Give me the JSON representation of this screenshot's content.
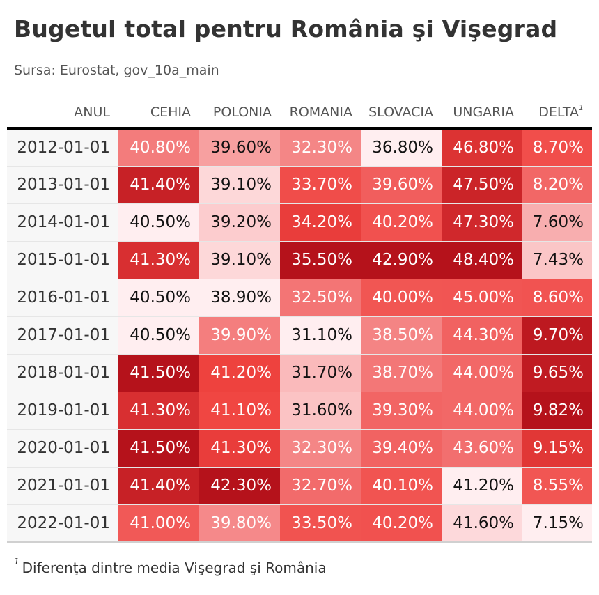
{
  "chart_data": {
    "type": "table",
    "title": "Bugetul total pentru România şi Vişegrad",
    "subtitle": "Sursa: Eurostat, gov_10a_main",
    "footnote": {
      "mark": "1",
      "text": "Diferenţa dintre media Vişegrad şi România"
    },
    "columns": [
      "ANUL",
      "CEHIA",
      "POLONIA",
      "ROMANIA",
      "SLOVACIA",
      "UNGARIA",
      "DELTA"
    ],
    "delta_footnote_mark": "1",
    "colors": {
      "lightest": "#ffeef0",
      "mid": "#f26f6f",
      "bright": "#f0433f",
      "dark": "#b5121b"
    },
    "rows": [
      [
        "2012-01-01",
        "40.80%",
        "39.60%",
        "32.30%",
        "36.80%",
        "46.80%",
        "8.70%"
      ],
      [
        "2013-01-01",
        "41.40%",
        "39.10%",
        "33.70%",
        "39.60%",
        "47.50%",
        "8.20%"
      ],
      [
        "2014-01-01",
        "40.50%",
        "39.20%",
        "34.20%",
        "40.20%",
        "47.30%",
        "7.60%"
      ],
      [
        "2015-01-01",
        "41.30%",
        "39.10%",
        "35.50%",
        "42.90%",
        "48.40%",
        "7.43%"
      ],
      [
        "2016-01-01",
        "40.50%",
        "38.90%",
        "32.50%",
        "40.00%",
        "45.00%",
        "8.60%"
      ],
      [
        "2017-01-01",
        "40.50%",
        "39.90%",
        "31.10%",
        "38.50%",
        "44.30%",
        "9.70%"
      ],
      [
        "2018-01-01",
        "41.50%",
        "41.20%",
        "31.70%",
        "38.70%",
        "44.00%",
        "9.65%"
      ],
      [
        "2019-01-01",
        "41.30%",
        "41.10%",
        "31.60%",
        "39.30%",
        "44.00%",
        "9.82%"
      ],
      [
        "2020-01-01",
        "41.50%",
        "41.30%",
        "32.30%",
        "39.40%",
        "43.60%",
        "9.15%"
      ],
      [
        "2021-01-01",
        "41.40%",
        "42.30%",
        "32.70%",
        "40.10%",
        "41.20%",
        "8.55%"
      ],
      [
        "2022-01-01",
        "41.00%",
        "39.80%",
        "33.50%",
        "40.20%",
        "41.60%",
        "7.15%"
      ]
    ]
  }
}
